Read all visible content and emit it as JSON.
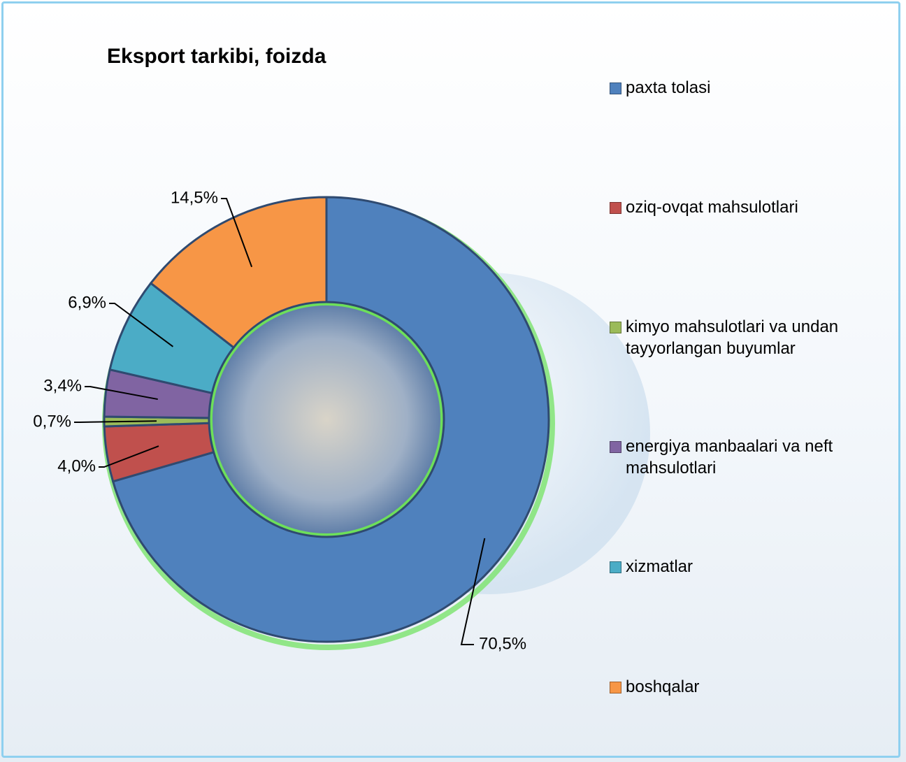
{
  "chart_data": {
    "type": "donut",
    "title": "Eksport tarkibi, foizda",
    "categories": [
      "paxta tolasi",
      "oziq-ovqat mahsulotlari",
      "kimyo mahsulotlari va undan tayyorlangan buyumlar",
      "energiya manbaalari va neft mahsulotlari",
      "xizmatlar",
      "boshqalar"
    ],
    "values": [
      70.5,
      4.0,
      0.7,
      3.4,
      6.9,
      14.5
    ],
    "value_labels": [
      "70,5%",
      "4,0%",
      "0,7%",
      "3,4%",
      "6,9%",
      "14,5%"
    ],
    "colors": [
      "#4f81bd",
      "#c0504d",
      "#9bbb59",
      "#8064a2",
      "#4bacc6",
      "#f79646"
    ]
  }
}
